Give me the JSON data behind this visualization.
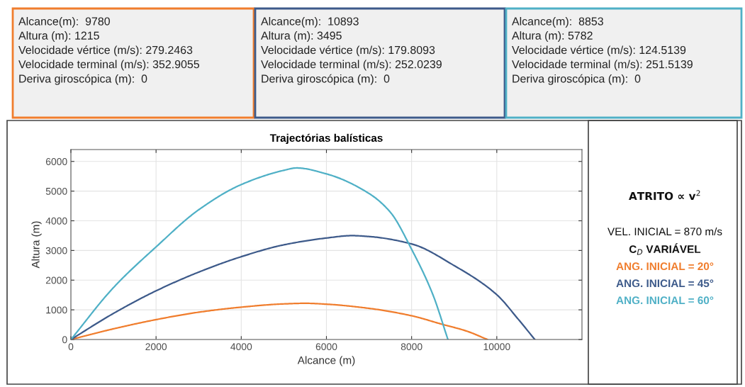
{
  "chart_data": {
    "type": "line",
    "title": "Trajectórias balísticas",
    "xlabel": "Alcance (m)",
    "ylabel": "Altura (m)",
    "xlim": [
      0,
      12000
    ],
    "xticks": [
      0,
      2000,
      4000,
      6000,
      8000,
      10000
    ],
    "ylim": [
      0,
      6400
    ],
    "yticks": [
      0,
      1000,
      2000,
      3000,
      4000,
      5000,
      6000
    ],
    "grid": true,
    "legend": "right",
    "marker": "none",
    "line_style": "solid",
    "series": [
      {
        "name": "ANG. INICIAL = 20°",
        "color": "#f07d2d",
        "x": [
          0,
          1000,
          2000,
          3000,
          4000,
          5000,
          5500,
          6000,
          7000,
          8000,
          8700,
          9300,
          9780
        ],
        "values": [
          0,
          360,
          670,
          920,
          1090,
          1200,
          1220,
          1190,
          1050,
          800,
          520,
          280,
          0
        ]
      },
      {
        "name": "ANG. INICIAL = 45°",
        "color": "#3d5a8a",
        "x": [
          0,
          1000,
          2000,
          3000,
          4000,
          5000,
          6000,
          6600,
          7000,
          8000,
          9000,
          10000,
          10500,
          10893
        ],
        "values": [
          0,
          880,
          1640,
          2270,
          2790,
          3190,
          3420,
          3500,
          3470,
          3220,
          2490,
          1510,
          690,
          0
        ]
      },
      {
        "name": "ANG. INICIAL = 60°",
        "color": "#4fb0c6",
        "x": [
          0,
          1000,
          2000,
          3000,
          4000,
          5000,
          5300,
          6000,
          7000,
          7500,
          8000,
          8500,
          8853
        ],
        "values": [
          0,
          1750,
          3120,
          4370,
          5220,
          5700,
          5780,
          5580,
          4920,
          4290,
          3040,
          1510,
          0
        ]
      }
    ],
    "annotations": [
      "Alcance(m):  9780\nAltura (m): 1215\nVelocidade vértice (m/s): 279.2463\nVelocidade terminal (m/s): 352.9055\nDeriva giroscópica (m):  0",
      "Alcance(m):  10893\nAltura (m): 3495\nVelocidade vértice (m/s): 179.8093\nVelocidade terminal (m/s): 252.0239\nDeriva giroscópica (m):  0",
      "Alcance(m):  8853\nAltura (m): 5782\nVelocidade vértice (m/s): 124.5139\nVelocidade terminal (m/s): 251.5139\nDeriva giroscópica (m):  0",
      "ATRITO ∝ v$^{2}$",
      "VEL. INICIAL = 870 m/s",
      "C$_{D}$ VARIÁVEL"
    ]
  }
}
